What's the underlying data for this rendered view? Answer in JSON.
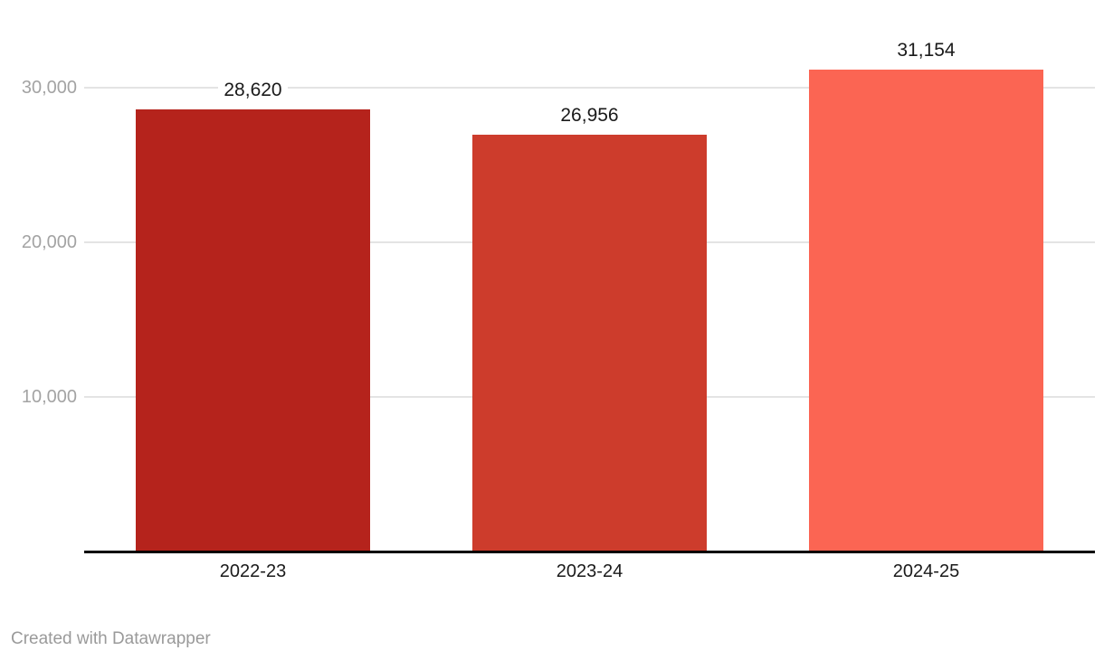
{
  "chart_data": {
    "type": "bar",
    "categories": [
      "2022-23",
      "2023-24",
      "2024-25"
    ],
    "values": [
      28620,
      26956,
      31154
    ],
    "value_labels": [
      "28,620",
      "26,956",
      "31,154"
    ],
    "bar_colors": [
      "#b5231c",
      "#cd3c2c",
      "#fb6553"
    ],
    "title": "",
    "xlabel": "",
    "ylabel": "",
    "ylim": [
      0,
      32000
    ],
    "yticks": [
      {
        "value": 10000,
        "label": "10,000"
      },
      {
        "value": 20000,
        "label": "20,000"
      },
      {
        "value": 30000,
        "label": "30,000"
      }
    ],
    "grid": "horizontal",
    "legend": "none"
  },
  "footer": {
    "attribution": "Created with Datawrapper"
  },
  "colors": {
    "background": "#ffffff",
    "value_label": "#1a1a1a",
    "category_label": "#1a1a1a",
    "tick_label": "#a3a3a3",
    "gridline": "#e4e4e4",
    "baseline": "#000000",
    "attribution": "#9a9a9a"
  }
}
